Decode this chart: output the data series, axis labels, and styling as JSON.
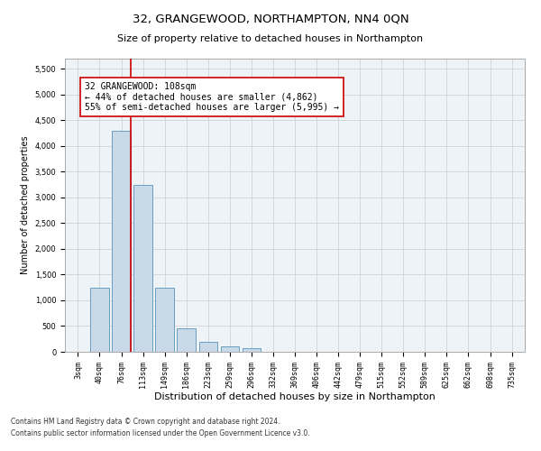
{
  "title": "32, GRANGEWOOD, NORTHAMPTON, NN4 0QN",
  "subtitle": "Size of property relative to detached houses in Northampton",
  "xlabel": "Distribution of detached houses by size in Northampton",
  "ylabel": "Number of detached properties",
  "footnote1": "Contains HM Land Registry data © Crown copyright and database right 2024.",
  "footnote2": "Contains public sector information licensed under the Open Government Licence v3.0.",
  "bar_labels": [
    "3sqm",
    "40sqm",
    "76sqm",
    "113sqm",
    "149sqm",
    "186sqm",
    "223sqm",
    "259sqm",
    "296sqm",
    "332sqm",
    "369sqm",
    "406sqm",
    "442sqm",
    "479sqm",
    "515sqm",
    "552sqm",
    "589sqm",
    "625sqm",
    "662sqm",
    "698sqm",
    "735sqm"
  ],
  "bar_values": [
    0,
    1250,
    4300,
    3250,
    1250,
    450,
    200,
    100,
    70,
    0,
    0,
    0,
    0,
    0,
    0,
    0,
    0,
    0,
    0,
    0,
    0
  ],
  "bar_color": "#c9d9e8",
  "bar_edge_color": "#6a9ec0",
  "vline_color": "#cc0000",
  "annotation_text": "32 GRANGEWOOD: 108sqm\n← 44% of detached houses are smaller (4,862)\n55% of semi-detached houses are larger (5,995) →",
  "annotation_box_color": "#ffffff",
  "annotation_box_edge": "#cc0000",
  "ylim": [
    0,
    5700
  ],
  "yticks": [
    0,
    500,
    1000,
    1500,
    2000,
    2500,
    3000,
    3500,
    4000,
    4500,
    5000,
    5500
  ],
  "grid_color": "#cccccc",
  "bg_color": "#eef3f7",
  "title_fontsize": 9.5,
  "subtitle_fontsize": 8,
  "xlabel_fontsize": 8,
  "ylabel_fontsize": 7,
  "tick_fontsize": 6,
  "annot_fontsize": 7,
  "footnote_fontsize": 5.5
}
